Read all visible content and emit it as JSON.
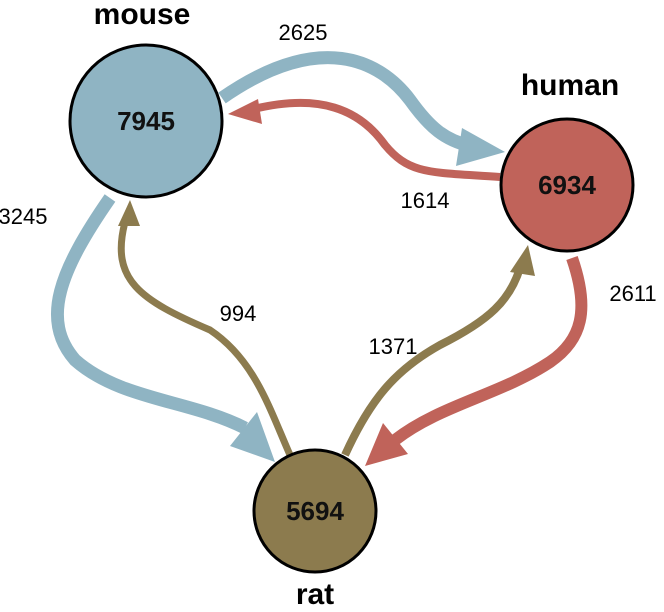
{
  "colors": {
    "mouse": "#8FB4C3",
    "human": "#C0635A",
    "rat": "#8C7B4E",
    "outline": "#000000"
  },
  "nodes": {
    "mouse": {
      "name": "mouse",
      "count": "7945"
    },
    "human": {
      "name": "human",
      "count": "6934"
    },
    "rat": {
      "name": "rat",
      "count": "5694"
    }
  },
  "edges": {
    "mouse_to_human": {
      "from": "mouse",
      "to": "human",
      "value": "2625"
    },
    "human_to_mouse": {
      "from": "human",
      "to": "mouse",
      "value": "1614"
    },
    "mouse_to_rat": {
      "from": "mouse",
      "to": "rat",
      "value": "3245"
    },
    "rat_to_mouse": {
      "from": "rat",
      "to": "mouse",
      "value": "994"
    },
    "rat_to_human": {
      "from": "rat",
      "to": "human",
      "value": "1371"
    },
    "human_to_rat": {
      "from": "human",
      "to": "rat",
      "value": "2611"
    }
  }
}
